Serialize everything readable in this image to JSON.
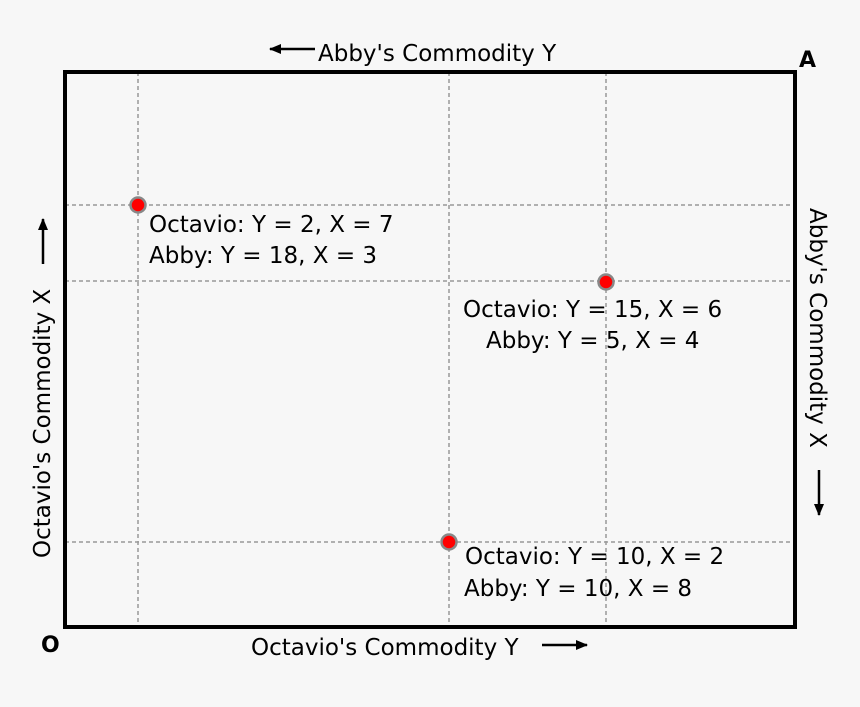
{
  "diagram": {
    "corner_origin": "O",
    "corner_opposite": "A",
    "axis_labels": {
      "bottom": "Octavio's Commodity Y",
      "left": "Octavio's Commodity X",
      "top": "Abby's Commodity Y",
      "right": "Abby's Commodity X"
    },
    "points": [
      {
        "octavio_label": "Octavio: Y = 2, X = 7",
        "abby_label": "Abby: Y = 18, X = 3"
      },
      {
        "octavio_label": "Octavio: Y = 15, X = 6",
        "abby_label": "Abby: Y = 5, X = 4"
      },
      {
        "octavio_label": "Octavio: Y = 10, X = 2",
        "abby_label": "Abby: Y = 10, X = 8"
      }
    ],
    "colors": {
      "point_fill": "#ff0000",
      "point_stroke": "#888888",
      "grid": "#999999",
      "frame": "#000000",
      "background": "#f7f7f7"
    }
  }
}
